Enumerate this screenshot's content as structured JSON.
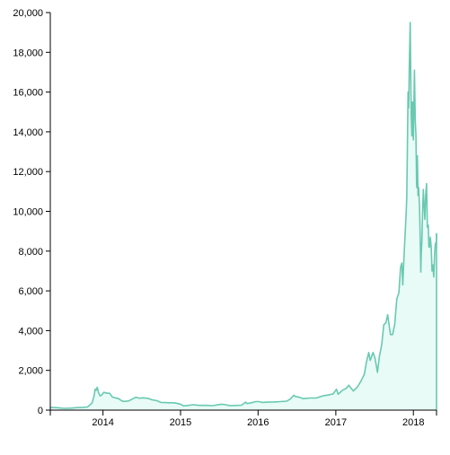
{
  "chart_data": {
    "type": "area",
    "title": "",
    "xlabel": "",
    "ylabel": "",
    "x_ticks": [
      "2014",
      "2015",
      "2016",
      "2017",
      "2018"
    ],
    "y_ticks": [
      "0",
      "2,000",
      "4,000",
      "6,000",
      "8,000",
      "10,000",
      "12,000",
      "14,000",
      "16,000",
      "18,000",
      "20,000"
    ],
    "xlim": [
      "2013-04-28",
      "2018-04-20"
    ],
    "ylim": [
      0,
      20000
    ],
    "grid": false,
    "colors": {
      "line": "#69c9b1",
      "fill": "#e8fbf6"
    },
    "series": [
      {
        "x": [
          "2013-04-28",
          "2013-06-01",
          "2013-07-01",
          "2013-08-01",
          "2013-09-01",
          "2013-10-01",
          "2013-10-20",
          "2013-11-10",
          "2013-11-20",
          "2013-11-25",
          "2013-11-30",
          "2013-12-05",
          "2013-12-10",
          "2013-12-18",
          "2013-12-25",
          "2014-01-05",
          "2014-01-20",
          "2014-02-01",
          "2014-02-15",
          "2014-03-01",
          "2014-03-15",
          "2014-04-01",
          "2014-04-10",
          "2014-05-01",
          "2014-05-20",
          "2014-06-05",
          "2014-06-20",
          "2014-07-10",
          "2014-08-01",
          "2014-08-20",
          "2014-09-10",
          "2014-10-01",
          "2014-10-20",
          "2014-11-10",
          "2014-12-01",
          "2014-12-20",
          "2015-01-05",
          "2015-01-15",
          "2015-02-01",
          "2015-03-01",
          "2015-04-01",
          "2015-05-01",
          "2015-06-01",
          "2015-07-01",
          "2015-07-15",
          "2015-08-01",
          "2015-08-20",
          "2015-09-15",
          "2015-10-15",
          "2015-11-03",
          "2015-11-10",
          "2015-12-01",
          "2015-12-20",
          "2016-01-05",
          "2016-01-20",
          "2016-02-15",
          "2016-03-15",
          "2016-04-15",
          "2016-05-15",
          "2016-06-01",
          "2016-06-17",
          "2016-06-25",
          "2016-07-10",
          "2016-08-01",
          "2016-09-01",
          "2016-10-01",
          "2016-11-01",
          "2016-12-01",
          "2016-12-20",
          "2017-01-04",
          "2017-01-12",
          "2017-02-01",
          "2017-02-20",
          "2017-03-03",
          "2017-03-25",
          "2017-04-15",
          "2017-05-01",
          "2017-05-15",
          "2017-05-25",
          "2017-06-05",
          "2017-06-12",
          "2017-06-25",
          "2017-07-05",
          "2017-07-16",
          "2017-07-25",
          "2017-08-05",
          "2017-08-15",
          "2017-08-25",
          "2017-09-02",
          "2017-09-15",
          "2017-09-25",
          "2017-10-05",
          "2017-10-15",
          "2017-10-25",
          "2017-11-02",
          "2017-11-08",
          "2017-11-12",
          "2017-11-20",
          "2017-11-28",
          "2017-12-01",
          "2017-12-07",
          "2017-12-10",
          "2017-12-13",
          "2017-12-17",
          "2017-12-20",
          "2017-12-22",
          "2017-12-25",
          "2017-12-28",
          "2018-01-01",
          "2018-01-06",
          "2018-01-10",
          "2018-01-13",
          "2018-01-16",
          "2018-01-17",
          "2018-01-20",
          "2018-01-23",
          "2018-01-26",
          "2018-01-30",
          "2018-02-02",
          "2018-02-05",
          "2018-02-07",
          "2018-02-10",
          "2018-02-14",
          "2018-02-17",
          "2018-02-20",
          "2018-02-24",
          "2018-02-28",
          "2018-03-04",
          "2018-03-08",
          "2018-03-12",
          "2018-03-15",
          "2018-03-18",
          "2018-03-22",
          "2018-03-26",
          "2018-03-30",
          "2018-04-03",
          "2018-04-07",
          "2018-04-11",
          "2018-04-15",
          "2018-04-18",
          "2018-04-20"
        ],
        "values": [
          140,
          120,
          90,
          100,
          125,
          140,
          160,
          350,
          700,
          1050,
          1000,
          1150,
          900,
          720,
          750,
          900,
          850,
          850,
          650,
          620,
          580,
          460,
          440,
          460,
          560,
          650,
          600,
          620,
          590,
          520,
          480,
          390,
          380,
          370,
          370,
          330,
          280,
          210,
          230,
          270,
          240,
          240,
          225,
          280,
          300,
          270,
          230,
          235,
          250,
          400,
          330,
          370,
          430,
          430,
          390,
          400,
          410,
          430,
          450,
          560,
          750,
          680,
          660,
          580,
          610,
          610,
          720,
          770,
          820,
          1050,
          800,
          1000,
          1100,
          1250,
          960,
          1200,
          1500,
          1800,
          2400,
          2900,
          2500,
          2900,
          2600,
          1900,
          2700,
          3300,
          4300,
          4400,
          4800,
          3800,
          3800,
          4300,
          5600,
          5900,
          7200,
          7400,
          6300,
          8200,
          9900,
          10800,
          16000,
          15200,
          17300,
          19500,
          16500,
          14700,
          13800,
          15500,
          13600,
          17100,
          14600,
          13800,
          11400,
          11200,
          12800,
          10800,
          11200,
          10200,
          8800,
          6950,
          7900,
          8500,
          10200,
          11100,
          10400,
          9600,
          10800,
          11400,
          9200,
          9300,
          8200,
          8200,
          8700,
          8200,
          7000,
          7300,
          6700,
          7900,
          8400,
          8200,
          8900
        ]
      }
    ]
  }
}
